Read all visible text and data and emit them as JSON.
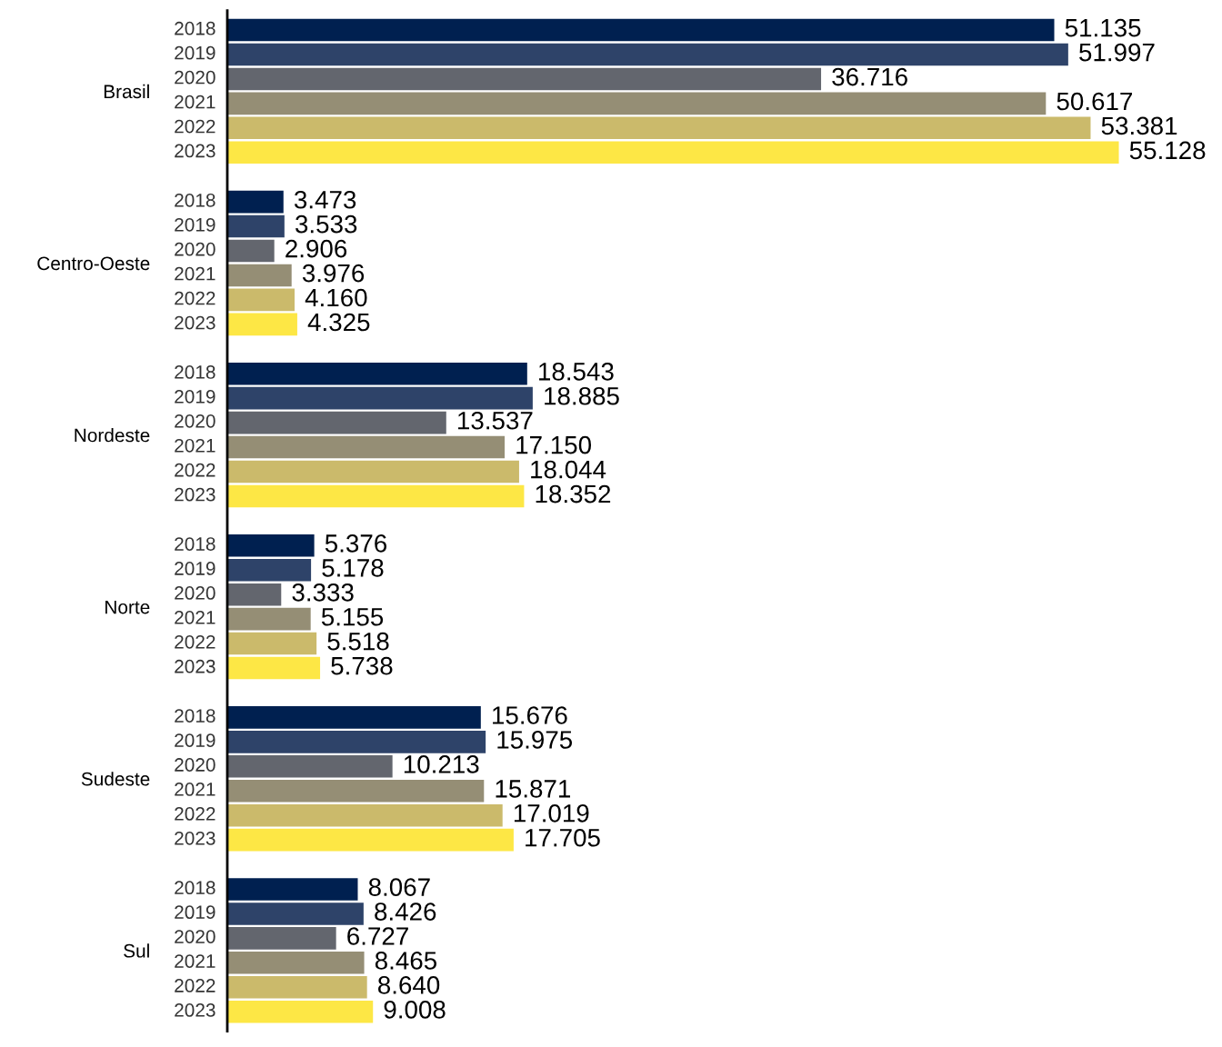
{
  "chart_data": {
    "type": "bar",
    "orientation": "horizontal",
    "categories": [
      "Brasil",
      "Centro-Oeste",
      "Nordeste",
      "Norte",
      "Sudeste",
      "Sul"
    ],
    "series": [
      {
        "name": "2018",
        "color": "#002050",
        "values": [
          51135,
          3473,
          18543,
          5376,
          15676,
          8067
        ],
        "value_labels": [
          "51.135",
          "3.473",
          "18.543",
          "5.376",
          "15.676",
          "8.067"
        ]
      },
      {
        "name": "2019",
        "color": "#2e4369",
        "values": [
          51997,
          3533,
          18885,
          5178,
          15975,
          8426
        ],
        "value_labels": [
          "51.997",
          "3.533",
          "18.885",
          "5.178",
          "15.975",
          "8.426"
        ]
      },
      {
        "name": "2020",
        "color": "#63666e",
        "values": [
          36716,
          2906,
          13537,
          3333,
          10213,
          6727
        ],
        "value_labels": [
          "36.716",
          "2.906",
          "13.537",
          "3.333",
          "10.213",
          "6.727"
        ]
      },
      {
        "name": "2021",
        "color": "#958e75",
        "values": [
          50617,
          3976,
          17150,
          5155,
          15871,
          8465
        ],
        "value_labels": [
          "50.617",
          "3.976",
          "17.150",
          "5.155",
          "15.871",
          "8.465"
        ]
      },
      {
        "name": "2022",
        "color": "#cbba6b",
        "values": [
          53381,
          4160,
          18044,
          5518,
          17019,
          8640
        ],
        "value_labels": [
          "53.381",
          "4.160",
          "18.044",
          "5.518",
          "17.019",
          "8.640"
        ]
      },
      {
        "name": "2023",
        "color": "#fde745",
        "values": [
          55128,
          4325,
          18352,
          5738,
          17705,
          9008
        ],
        "value_labels": [
          "55.128",
          "4.325",
          "18.352",
          "5.738",
          "17.705",
          "9.008"
        ]
      }
    ],
    "legend": false,
    "grid": false,
    "tick_labels": "y"
  }
}
